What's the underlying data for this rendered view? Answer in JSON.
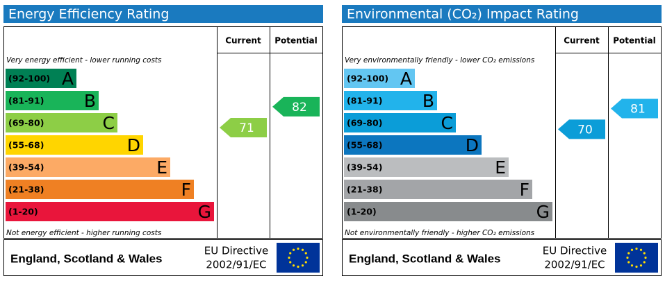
{
  "chart_data": [
    {
      "type": "epc",
      "title": "Energy Efficiency Rating",
      "columns": [
        "Current",
        "Potential"
      ],
      "top_note": "Very energy efficient - lower running costs",
      "bottom_note": "Not energy efficient - higher running costs",
      "bands": [
        {
          "range": "(92-100)",
          "letter": "A",
          "color": "#008054"
        },
        {
          "range": "(81-91)",
          "letter": "B",
          "color": "#19b459"
        },
        {
          "range": "(69-80)",
          "letter": "C",
          "color": "#8dce46"
        },
        {
          "range": "(55-68)",
          "letter": "D",
          "color": "#ffd500"
        },
        {
          "range": "(39-54)",
          "letter": "E",
          "color": "#fcaa65"
        },
        {
          "range": "(21-38)",
          "letter": "F",
          "color": "#ef8023"
        },
        {
          "range": "(1-20)",
          "letter": "G",
          "color": "#e9153b"
        }
      ],
      "current": 71,
      "potential": 82,
      "footer": "England, Scotland & Wales",
      "directive": [
        "EU Directive",
        "2002/91/EC"
      ]
    },
    {
      "type": "epc",
      "title": "Environmental (CO₂) Impact Rating",
      "columns": [
        "Current",
        "Potential"
      ],
      "top_note": "Very environmentally friendly - lower CO₂ emissions",
      "bottom_note": "Not environmentally friendly - higher CO₂ emissions",
      "bands": [
        {
          "range": "(92-100)",
          "letter": "A",
          "color": "#63c6f2"
        },
        {
          "range": "(81-91)",
          "letter": "B",
          "color": "#22b3eb"
        },
        {
          "range": "(69-80)",
          "letter": "C",
          "color": "#0b9dd8"
        },
        {
          "range": "(55-68)",
          "letter": "D",
          "color": "#0c76bf"
        },
        {
          "range": "(39-54)",
          "letter": "E",
          "color": "#bbbdbf"
        },
        {
          "range": "(21-38)",
          "letter": "F",
          "color": "#a3a5a8"
        },
        {
          "range": "(1-20)",
          "letter": "G",
          "color": "#888b8d"
        }
      ],
      "current": 70,
      "potential": 81,
      "footer": "England, Scotland & Wales",
      "directive": [
        "EU Directive",
        "2002/91/EC"
      ]
    }
  ]
}
